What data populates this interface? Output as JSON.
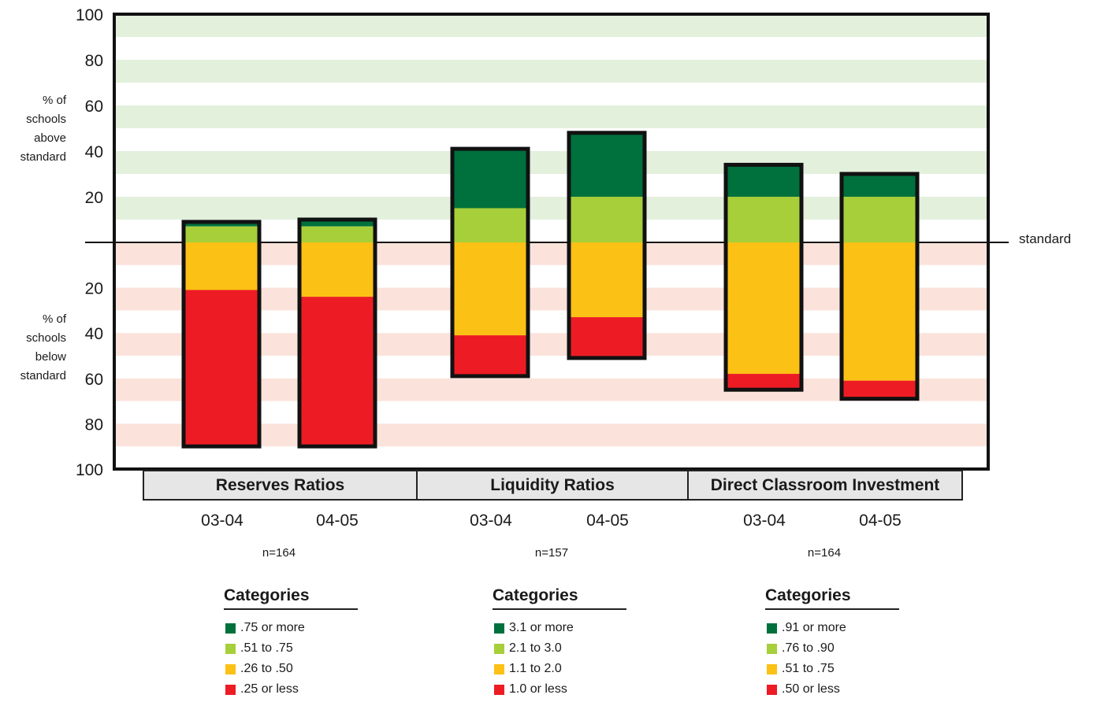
{
  "labels": {
    "above": "% of\nschools\nabove\nstandard",
    "below": "% of\nschools\nbelow\nstandard",
    "standard": "standard",
    "y_ticks_above": [
      "100",
      "80",
      "60",
      "40",
      "20"
    ],
    "y_ticks_below": [
      "20",
      "40",
      "60",
      "80",
      "100"
    ]
  },
  "colors": {
    "dark_green": "#00703c",
    "light_green": "#a6cf3a",
    "yellow": "#fcc115",
    "red": "#ed1c24",
    "band_green": "#e3f0dc",
    "band_red": "#fbe3db"
  },
  "chart_data": {
    "type": "bar",
    "subtype": "diverging stacked bar",
    "ylim": [
      -100,
      100
    ],
    "groups": [
      {
        "name": "Reserves Ratios",
        "n": "n=164",
        "legend_title": "Categories",
        "legend": [
          ".75 or more",
          ".51 to .75",
          ".26 to .50",
          ".25 or less"
        ],
        "bars": [
          {
            "period": "03-04",
            "above": [
              2,
              7
            ],
            "below": [
              21,
              69
            ]
          },
          {
            "period": "04-05",
            "above": [
              3,
              7
            ],
            "below": [
              24,
              66
            ]
          }
        ]
      },
      {
        "name": "Liquidity Ratios",
        "n": "n=157",
        "legend_title": "Categories",
        "legend": [
          "3.1 or more",
          "2.1 to 3.0",
          "1.1 to 2.0",
          "1.0 or less"
        ],
        "bars": [
          {
            "period": "03-04",
            "above": [
              26,
              15
            ],
            "below": [
              41,
              18
            ]
          },
          {
            "period": "04-05",
            "above": [
              28,
              20
            ],
            "below": [
              33,
              18
            ]
          }
        ]
      },
      {
        "name": "Direct Classroom Investment",
        "n": "n=164",
        "legend_title": "Categories",
        "legend": [
          ".91 or more",
          ".76 to .90",
          ".51 to .75",
          ".50 or less"
        ],
        "bars": [
          {
            "period": "03-04",
            "above": [
              14,
              20
            ],
            "below": [
              58,
              7
            ]
          },
          {
            "period": "04-05",
            "above": [
              10,
              20
            ],
            "below": [
              61,
              8
            ]
          }
        ]
      }
    ]
  }
}
